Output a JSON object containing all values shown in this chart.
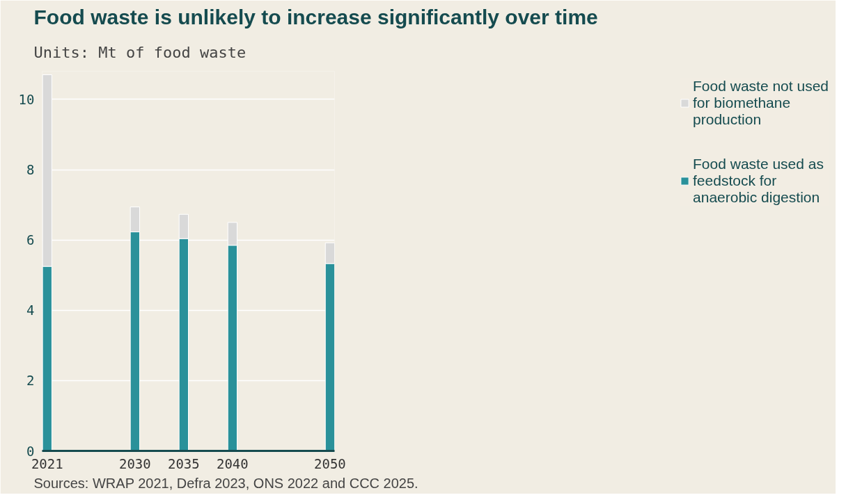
{
  "chart_data": {
    "type": "bar",
    "stacked": true,
    "title": "Food waste is unlikely to increase significantly over time",
    "subtitle": "Units: Mt of food waste",
    "x": [
      2021,
      2030,
      2035,
      2040,
      2050
    ],
    "series": [
      {
        "name": "Food waste used as feedstock for anaerobic digestion",
        "color": "#2a919a",
        "values": [
          5.25,
          6.23,
          6.04,
          5.85,
          5.33
        ]
      },
      {
        "name": "Food waste not used for biomethane production",
        "color": "#d9d9d9",
        "values": [
          5.45,
          0.71,
          0.69,
          0.65,
          0.59
        ]
      }
    ],
    "xlim": [
      2020.48,
      2050.47
    ],
    "xticks": [
      2021,
      2030,
      2035,
      2040,
      2050
    ],
    "ylim": [
      0,
      10.8
    ],
    "yticks": [
      0,
      2,
      4,
      6,
      8,
      10
    ],
    "grid": "y",
    "legend": "right",
    "annotations": [
      "Sources: WRAP 2021, Defra 2023, ONS 2022 and CCC 2025."
    ]
  }
}
